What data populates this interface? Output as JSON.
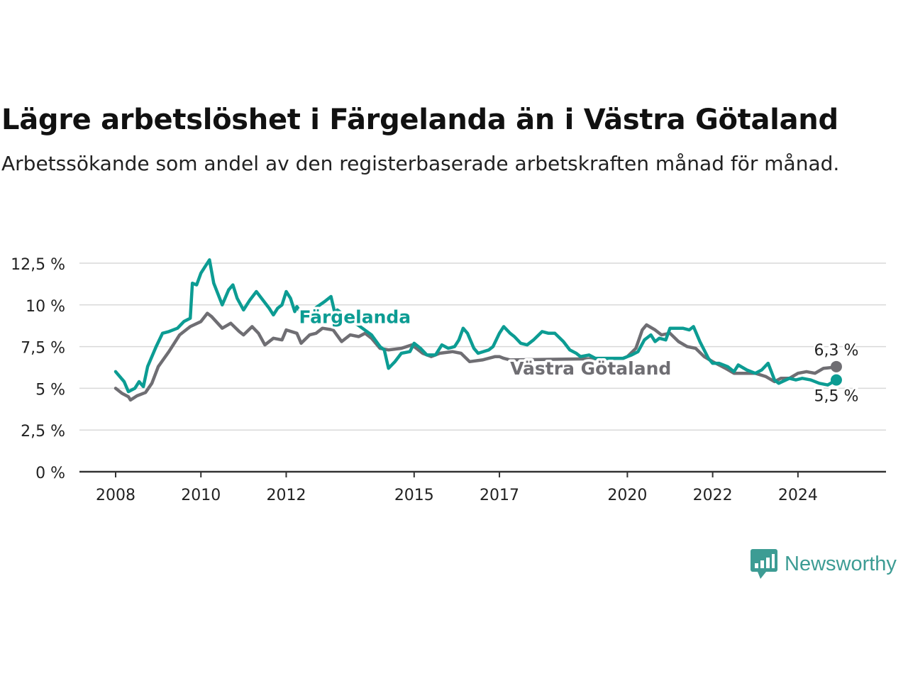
{
  "header": {
    "title": "Lägre arbetslöshet i Färgelanda än i Västra Götaland",
    "subtitle": "Arbetssökande som andel av den registerbaserade arbetskraften månad för månad."
  },
  "brand": {
    "name": "Newsworthy",
    "icon": "newsworthy-logo-icon",
    "color": "#3d9c94"
  },
  "chart_data": {
    "type": "line",
    "xlim": [
      2008,
      2025.2
    ],
    "ylim": [
      0,
      12.5
    ],
    "grid": true,
    "x_ticks": [
      2008,
      2010,
      2012,
      2015,
      2017,
      2020,
      2022,
      2024
    ],
    "x_tick_labels": [
      "2008",
      "2010",
      "2012",
      "2015",
      "2017",
      "2020",
      "2022",
      "2024"
    ],
    "y_ticks": [
      0,
      2.5,
      5,
      7.5,
      10,
      12.5
    ],
    "y_tick_labels": [
      "0 %",
      "2,5 %",
      "5 %",
      "7,5 %",
      "10 %",
      "12,5 %"
    ],
    "series": [
      {
        "name": "Västra Götaland",
        "color": "#6f6e73",
        "end_label": "6,3 %",
        "points": [
          [
            2008.0,
            5.0
          ],
          [
            2008.15,
            4.7
          ],
          [
            2008.3,
            4.5
          ],
          [
            2008.35,
            4.3
          ],
          [
            2008.5,
            4.55
          ],
          [
            2008.7,
            4.75
          ],
          [
            2008.85,
            5.3
          ],
          [
            2009.0,
            6.3
          ],
          [
            2009.25,
            7.2
          ],
          [
            2009.5,
            8.2
          ],
          [
            2009.75,
            8.7
          ],
          [
            2010.0,
            9.0
          ],
          [
            2010.15,
            9.5
          ],
          [
            2010.25,
            9.3
          ],
          [
            2010.5,
            8.6
          ],
          [
            2010.7,
            8.9
          ],
          [
            2010.9,
            8.4
          ],
          [
            2011.0,
            8.2
          ],
          [
            2011.2,
            8.7
          ],
          [
            2011.35,
            8.3
          ],
          [
            2011.5,
            7.6
          ],
          [
            2011.7,
            8.0
          ],
          [
            2011.9,
            7.9
          ],
          [
            2012.0,
            8.5
          ],
          [
            2012.25,
            8.3
          ],
          [
            2012.35,
            7.7
          ],
          [
            2012.55,
            8.2
          ],
          [
            2012.7,
            8.3
          ],
          [
            2012.85,
            8.6
          ],
          [
            2013.1,
            8.5
          ],
          [
            2013.3,
            7.8
          ],
          [
            2013.5,
            8.2
          ],
          [
            2013.7,
            8.1
          ],
          [
            2013.85,
            8.3
          ],
          [
            2014.0,
            8.0
          ],
          [
            2014.2,
            7.4
          ],
          [
            2014.4,
            7.3
          ],
          [
            2014.7,
            7.4
          ],
          [
            2014.95,
            7.6
          ],
          [
            2015.2,
            7.1
          ],
          [
            2015.4,
            6.9
          ],
          [
            2015.6,
            7.1
          ],
          [
            2015.9,
            7.2
          ],
          [
            2016.1,
            7.1
          ],
          [
            2016.3,
            6.6
          ],
          [
            2016.6,
            6.7
          ],
          [
            2016.9,
            6.9
          ],
          [
            2017.0,
            6.9
          ],
          [
            2017.1,
            6.8
          ],
          [
            2017.25,
            6.7
          ],
          [
            2019.9,
            6.8
          ],
          [
            2020.0,
            6.9
          ],
          [
            2020.2,
            7.4
          ],
          [
            2020.35,
            8.5
          ],
          [
            2020.45,
            8.8
          ],
          [
            2020.65,
            8.5
          ],
          [
            2020.8,
            8.2
          ],
          [
            2021.0,
            8.3
          ],
          [
            2021.2,
            7.8
          ],
          [
            2021.4,
            7.5
          ],
          [
            2021.6,
            7.4
          ],
          [
            2021.8,
            6.9
          ],
          [
            2022.0,
            6.6
          ],
          [
            2022.3,
            6.2
          ],
          [
            2022.5,
            5.9
          ],
          [
            2023.0,
            5.9
          ],
          [
            2023.25,
            5.7
          ],
          [
            2023.45,
            5.4
          ],
          [
            2023.6,
            5.6
          ],
          [
            2023.8,
            5.6
          ],
          [
            2024.0,
            5.9
          ],
          [
            2024.2,
            6.0
          ],
          [
            2024.4,
            5.9
          ],
          [
            2024.6,
            6.2
          ],
          [
            2024.8,
            6.25
          ],
          [
            2024.9,
            6.3
          ]
        ]
      },
      {
        "name": "Färgelanda",
        "color": "#0c9c93",
        "end_label": "5,5 %",
        "points": [
          [
            2008.0,
            6.0
          ],
          [
            2008.2,
            5.4
          ],
          [
            2008.3,
            4.8
          ],
          [
            2008.45,
            5.0
          ],
          [
            2008.55,
            5.4
          ],
          [
            2008.65,
            5.1
          ],
          [
            2008.75,
            6.3
          ],
          [
            2008.95,
            7.5
          ],
          [
            2009.1,
            8.3
          ],
          [
            2009.25,
            8.4
          ],
          [
            2009.45,
            8.6
          ],
          [
            2009.6,
            9.0
          ],
          [
            2009.75,
            9.2
          ],
          [
            2009.8,
            11.3
          ],
          [
            2009.9,
            11.2
          ],
          [
            2010.0,
            11.9
          ],
          [
            2010.1,
            12.3
          ],
          [
            2010.2,
            12.7
          ],
          [
            2010.3,
            11.3
          ],
          [
            2010.5,
            10.0
          ],
          [
            2010.65,
            10.9
          ],
          [
            2010.75,
            11.2
          ],
          [
            2010.85,
            10.4
          ],
          [
            2011.0,
            9.7
          ],
          [
            2011.15,
            10.3
          ],
          [
            2011.3,
            10.8
          ],
          [
            2011.45,
            10.3
          ],
          [
            2011.6,
            9.8
          ],
          [
            2011.7,
            9.4
          ],
          [
            2011.8,
            9.8
          ],
          [
            2011.9,
            10.0
          ],
          [
            2012.0,
            10.8
          ],
          [
            2012.1,
            10.4
          ],
          [
            2012.2,
            9.6
          ],
          [
            2012.25,
            9.9
          ],
          [
            2012.4,
            9.3
          ],
          [
            2012.9,
            10.2
          ],
          [
            2013.05,
            10.5
          ],
          [
            2013.15,
            9.4
          ],
          [
            2013.2,
            9.7
          ],
          [
            2014.0,
            8.2
          ],
          [
            2014.2,
            7.5
          ],
          [
            2014.3,
            7.3
          ],
          [
            2014.4,
            6.2
          ],
          [
            2014.55,
            6.6
          ],
          [
            2014.7,
            7.1
          ],
          [
            2014.9,
            7.2
          ],
          [
            2015.0,
            7.7
          ],
          [
            2015.15,
            7.4
          ],
          [
            2015.3,
            7.0
          ],
          [
            2015.5,
            7.0
          ],
          [
            2015.65,
            7.6
          ],
          [
            2015.8,
            7.4
          ],
          [
            2015.95,
            7.5
          ],
          [
            2016.05,
            7.9
          ],
          [
            2016.15,
            8.6
          ],
          [
            2016.25,
            8.3
          ],
          [
            2016.4,
            7.4
          ],
          [
            2016.5,
            7.1
          ],
          [
            2016.75,
            7.3
          ],
          [
            2016.85,
            7.5
          ],
          [
            2017.0,
            8.3
          ],
          [
            2017.1,
            8.7
          ],
          [
            2017.25,
            8.3
          ],
          [
            2017.35,
            8.1
          ],
          [
            2017.5,
            7.7
          ],
          [
            2017.65,
            7.6
          ],
          [
            2017.8,
            7.9
          ],
          [
            2018.0,
            8.4
          ],
          [
            2018.15,
            8.3
          ],
          [
            2018.3,
            8.3
          ],
          [
            2018.5,
            7.8
          ],
          [
            2018.65,
            7.3
          ],
          [
            2018.8,
            7.1
          ],
          [
            2018.9,
            6.9
          ],
          [
            2019.1,
            7.0
          ],
          [
            2019.25,
            6.8
          ],
          [
            2019.4,
            6.8
          ],
          [
            2019.9,
            6.8
          ],
          [
            2020.0,
            6.9
          ],
          [
            2020.1,
            7.0
          ],
          [
            2020.25,
            7.2
          ],
          [
            2020.4,
            7.9
          ],
          [
            2020.55,
            8.2
          ],
          [
            2020.65,
            7.8
          ],
          [
            2020.75,
            8.0
          ],
          [
            2020.9,
            7.9
          ],
          [
            2021.0,
            8.6
          ],
          [
            2021.15,
            8.6
          ],
          [
            2021.3,
            8.6
          ],
          [
            2021.45,
            8.5
          ],
          [
            2021.55,
            8.7
          ],
          [
            2021.7,
            7.8
          ],
          [
            2021.9,
            6.8
          ],
          [
            2022.0,
            6.5
          ],
          [
            2022.15,
            6.5
          ],
          [
            2022.35,
            6.3
          ],
          [
            2022.5,
            6.0
          ],
          [
            2022.6,
            6.4
          ],
          [
            2022.8,
            6.1
          ],
          [
            2023.0,
            5.9
          ],
          [
            2023.15,
            6.1
          ],
          [
            2023.3,
            6.5
          ],
          [
            2023.45,
            5.5
          ],
          [
            2023.55,
            5.3
          ],
          [
            2023.8,
            5.6
          ],
          [
            2023.95,
            5.5
          ],
          [
            2024.1,
            5.6
          ],
          [
            2024.3,
            5.5
          ],
          [
            2024.5,
            5.3
          ],
          [
            2024.7,
            5.2
          ],
          [
            2024.9,
            5.5
          ]
        ]
      }
    ],
    "annotations": [
      {
        "text": "Färgelanda",
        "x": 2012.3,
        "y": 9.3,
        "color": "#0c9c93"
      },
      {
        "text": "Västra Götaland",
        "x": 2017.25,
        "y": 6.2,
        "color": "#6f6e73"
      }
    ]
  }
}
